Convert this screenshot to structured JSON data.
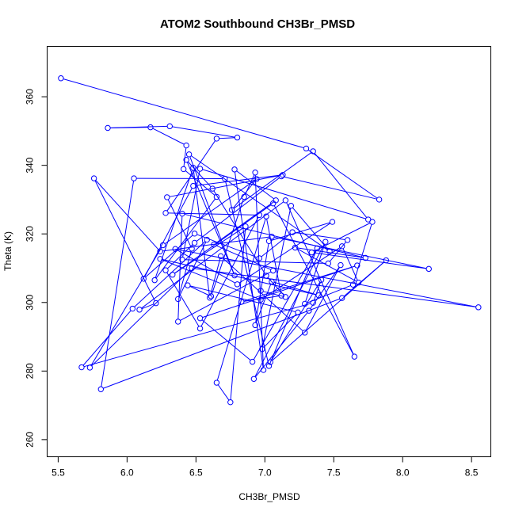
{
  "chart_data": {
    "type": "line",
    "title": "ATOM2 Southbound CH3Br_PMSD",
    "xlabel": "CH3Br_PMSD",
    "ylabel": "Theta (K)",
    "xlim": [
      5.42,
      8.64
    ],
    "ylim": [
      255.0,
      374.7
    ],
    "x_ticks": [
      5.5,
      6.0,
      6.5,
      7.0,
      7.5,
      8.0,
      8.5
    ],
    "x_tick_labels": [
      "5.5",
      "6.0",
      "6.5",
      "7.0",
      "7.5",
      "8.0",
      "8.5"
    ],
    "y_ticks": [
      260,
      280,
      300,
      320,
      340,
      360
    ],
    "y_tick_labels": [
      "260",
      "280",
      "300",
      "320",
      "340",
      "360"
    ],
    "grid": false,
    "legend": "none",
    "series_color": "#0000ff",
    "series": [
      {
        "points": [
          [
            5.52,
            365.4
          ],
          [
            7.3,
            344.9
          ],
          [
            7.83,
            330.0
          ],
          [
            7.12,
            336.8
          ],
          [
            6.49,
            317.4
          ],
          [
            6.28,
            309.4
          ],
          [
            6.53,
            292.4
          ],
          [
            6.96,
            325.5
          ],
          [
            6.28,
            326.1
          ],
          [
            6.65,
            347.8
          ],
          [
            6.8,
            348.1
          ],
          [
            6.31,
            351.4
          ],
          [
            5.86,
            350.9
          ],
          [
            6.17,
            351.1
          ],
          [
            6.43,
            345.8
          ],
          [
            6.41,
            338.9
          ],
          [
            6.65,
            330.8
          ],
          [
            6.2,
            306.5
          ],
          [
            6.48,
            339.3
          ],
          [
            6.6,
            301.4
          ],
          [
            6.68,
            313.5
          ],
          [
            7.29,
            291.2
          ],
          [
            7.55,
            310.9
          ],
          [
            7.32,
            297.6
          ],
          [
            6.92,
            277.7
          ],
          [
            7.44,
            317.7
          ],
          [
            7.29,
            299.6
          ],
          [
            7.64,
            305.2
          ],
          [
            7.78,
            323.5
          ],
          [
            7.34,
            314.6
          ],
          [
            8.19,
            309.8
          ],
          [
            7.05,
            319.2
          ],
          [
            6.24,
            314.9
          ],
          [
            5.76,
            336.2
          ],
          [
            6.21,
            299.8
          ],
          [
            6.09,
            297.9
          ],
          [
            7.15,
            329.8
          ],
          [
            7.65,
            284.2
          ],
          [
            7.06,
            328.9
          ],
          [
            6.33,
            308.1
          ],
          [
            6.86,
            322.2
          ],
          [
            6.75,
            270.9
          ],
          [
            6.65,
            276.6
          ],
          [
            7.01,
            325.1
          ],
          [
            7.12,
            302.0
          ],
          [
            6.83,
            300.2
          ],
          [
            7.67,
            310.8
          ],
          [
            6.53,
            295.4
          ],
          [
            6.91,
            282.7
          ],
          [
            7.38,
            315.8
          ],
          [
            7.03,
            281.5
          ],
          [
            6.71,
            336.1
          ],
          [
            6.05,
            336.2
          ],
          [
            5.81,
            274.7
          ],
          [
            7.56,
            301.3
          ],
          [
            7.88,
            312.3
          ],
          [
            7.04,
            282.6
          ],
          [
            7.41,
            306.6
          ],
          [
            7.35,
            299.9
          ],
          [
            5.67,
            281.1
          ],
          [
            6.04,
            298.2
          ],
          [
            6.58,
            318.3
          ],
          [
            6.37,
            301.0
          ],
          [
            6.47,
            315.7
          ],
          [
            6.29,
            330.7
          ],
          [
            7.13,
            337.2
          ],
          [
            6.48,
            334.0
          ],
          [
            6.12,
            306.9
          ],
          [
            6.49,
            320.1
          ],
          [
            6.96,
            312.9
          ],
          [
            7.2,
            320.5
          ],
          [
            7.6,
            318.2
          ],
          [
            7.46,
            311.4
          ],
          [
            6.4,
            312.5
          ],
          [
            6.53,
            339.0
          ],
          [
            7.75,
            324.2
          ],
          [
            7.35,
            344.1
          ],
          [
            6.76,
            327.0
          ],
          [
            6.94,
            336.0
          ],
          [
            6.26,
            316.7
          ],
          [
            5.73,
            281.0
          ],
          [
            6.47,
            310.0
          ],
          [
            8.55,
            298.6
          ],
          [
            6.35,
            315.6
          ],
          [
            6.8,
            305.3
          ],
          [
            7.49,
            323.5
          ],
          [
            7.03,
            317.9
          ],
          [
            6.93,
            293.4
          ],
          [
            7.05,
            306.1
          ],
          [
            7.39,
            302.1
          ],
          [
            6.24,
            312.7
          ],
          [
            6.97,
            300.8
          ],
          [
            7.56,
            316.4
          ],
          [
            7.68,
            305.8
          ],
          [
            7.22,
            316.0
          ],
          [
            7.73,
            313.0
          ],
          [
            6.4,
            325.9
          ],
          [
            6.37,
            294.4
          ],
          [
            7.06,
            309.3
          ],
          [
            6.63,
            316.9
          ],
          [
            7.08,
            329.8
          ],
          [
            6.78,
            338.8
          ],
          [
            6.99,
            280.3
          ],
          [
            6.93,
            337.9
          ],
          [
            6.85,
            330.8
          ],
          [
            6.61,
            301.8
          ],
          [
            6.44,
            305.0
          ],
          [
            7.24,
            297.1
          ],
          [
            6.98,
            286.4
          ],
          [
            7.19,
            328.2
          ],
          [
            7.47,
            314.9
          ],
          [
            6.45,
            343.2
          ],
          [
            6.78,
            307.9
          ],
          [
            6.43,
            341.6
          ],
          [
            6.62,
            333.2
          ],
          [
            7.01,
            307.8
          ],
          [
            7.15,
            301.6
          ],
          [
            6.97,
            303.4
          ]
        ]
      }
    ]
  }
}
